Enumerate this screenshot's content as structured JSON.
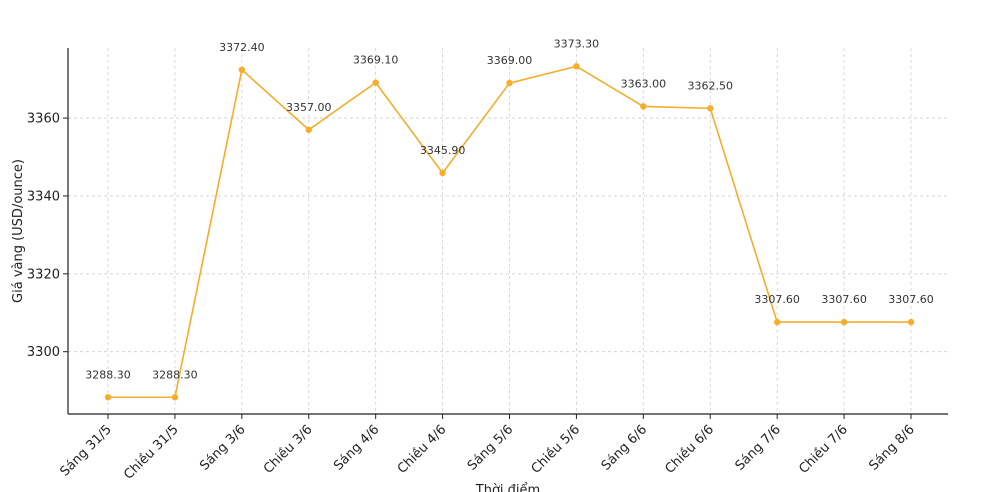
{
  "chart_data": {
    "type": "line",
    "title": "",
    "xlabel": "Thời điểm",
    "ylabel": "Giá vàng (USD/ounce)",
    "categories": [
      "Sáng 31/5",
      "Chiều 31/5",
      "Sáng 3/6",
      "Chiều 3/6",
      "Sáng 4/6",
      "Chiều 4/6",
      "Sáng 5/6",
      "Chiều 5/6",
      "Sáng 6/6",
      "Chiều 6/6",
      "Sáng 7/6",
      "Chiều 7/6",
      "Sáng 8/6"
    ],
    "values": [
      3288.3,
      3288.3,
      3372.4,
      3357.0,
      3369.1,
      3345.9,
      3369.0,
      3373.3,
      3363.0,
      3362.5,
      3307.6,
      3307.6,
      3307.6
    ],
    "value_labels": [
      "3288.30",
      "3288.30",
      "3372.40",
      "3357.00",
      "3369.10",
      "3345.90",
      "3369.00",
      "3373.30",
      "3363.00",
      "3362.50",
      "3307.60",
      "3307.60",
      "3307.60"
    ],
    "yticks": [
      3300,
      3320,
      3340,
      3360
    ],
    "ylim": [
      3284,
      3378
    ],
    "grid": true,
    "legend": "none",
    "line_color": "#f5ad2a",
    "marker_color": "#f5ad2a"
  }
}
